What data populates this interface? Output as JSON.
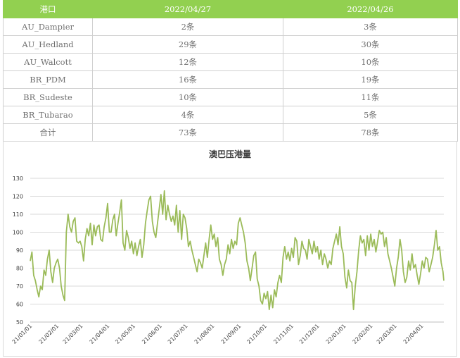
{
  "table": {
    "headers": [
      "港口",
      "2022/04/27",
      "2022/04/26"
    ],
    "rows": [
      [
        "AU_Dampier",
        "2条",
        "3条"
      ],
      [
        "AU_Hedland",
        "29条",
        "30条"
      ],
      [
        "AU_Walcott",
        "12条",
        "10条"
      ],
      [
        "BR_PDM",
        "16条",
        "19条"
      ],
      [
        "BR_Sudeste",
        "10条",
        "11条"
      ],
      [
        "BR_Tubarao",
        "4条",
        "5条"
      ],
      [
        "合计",
        "73条",
        "78条"
      ]
    ]
  },
  "colors": {
    "header_bg": "#92d050",
    "line": "#9bbb59",
    "grid": "#d9d9d9"
  },
  "chart_data": {
    "type": "line",
    "title": "澳巴压港量",
    "xlabel": "",
    "ylabel": "",
    "ylim": [
      50,
      130
    ],
    "yticks": [
      50,
      60,
      70,
      80,
      90,
      100,
      110,
      120,
      130
    ],
    "grid": true,
    "x_tick_labels": [
      "21/01/01",
      "21/02/01",
      "21/03/01",
      "21/04/01",
      "21/05/01",
      "21/06/01",
      "21/07/01",
      "21/08/01",
      "21/09/01",
      "21/10/01",
      "21/11/01",
      "21/12/01",
      "22/01/01",
      "22/02/01",
      "22/03/01",
      "22/04/01"
    ],
    "x_start": "2021-01-01",
    "x_end": "2022-04-27",
    "series": [
      {
        "name": "",
        "points": [
          [
            "2021-01-01",
            84
          ],
          [
            "2021-01-03",
            89
          ],
          [
            "2021-01-05",
            76
          ],
          [
            "2021-01-07",
            73
          ],
          [
            "2021-01-09",
            68
          ],
          [
            "2021-01-11",
            64
          ],
          [
            "2021-01-13",
            70
          ],
          [
            "2021-01-15",
            68
          ],
          [
            "2021-01-17",
            79
          ],
          [
            "2021-01-19",
            76
          ],
          [
            "2021-01-21",
            85
          ],
          [
            "2021-01-23",
            90
          ],
          [
            "2021-01-25",
            78
          ],
          [
            "2021-01-27",
            72
          ],
          [
            "2021-01-29",
            80
          ],
          [
            "2021-01-31",
            83
          ],
          [
            "2021-02-02",
            85
          ],
          [
            "2021-02-04",
            80
          ],
          [
            "2021-02-06",
            70
          ],
          [
            "2021-02-08",
            65
          ],
          [
            "2021-02-10",
            62
          ],
          [
            "2021-02-12",
            100
          ],
          [
            "2021-02-14",
            110
          ],
          [
            "2021-02-16",
            103
          ],
          [
            "2021-02-18",
            100
          ],
          [
            "2021-02-20",
            106
          ],
          [
            "2021-02-22",
            108
          ],
          [
            "2021-02-24",
            95
          ],
          [
            "2021-02-26",
            94
          ],
          [
            "2021-02-28",
            95
          ],
          [
            "2021-03-02",
            92
          ],
          [
            "2021-03-04",
            84
          ],
          [
            "2021-03-06",
            96
          ],
          [
            "2021-03-08",
            102
          ],
          [
            "2021-03-10",
            98
          ],
          [
            "2021-03-12",
            105
          ],
          [
            "2021-03-14",
            93
          ],
          [
            "2021-03-16",
            104
          ],
          [
            "2021-03-18",
            98
          ],
          [
            "2021-03-20",
            103
          ],
          [
            "2021-03-22",
            104
          ],
          [
            "2021-03-24",
            96
          ],
          [
            "2021-03-26",
            95
          ],
          [
            "2021-03-28",
            103
          ],
          [
            "2021-03-30",
            108
          ],
          [
            "2021-04-01",
            116
          ],
          [
            "2021-04-03",
            100
          ],
          [
            "2021-04-05",
            100
          ],
          [
            "2021-04-07",
            107
          ],
          [
            "2021-04-09",
            110
          ],
          [
            "2021-04-11",
            98
          ],
          [
            "2021-04-13",
            105
          ],
          [
            "2021-04-15",
            111
          ],
          [
            "2021-04-17",
            118
          ],
          [
            "2021-04-19",
            94
          ],
          [
            "2021-04-21",
            90
          ],
          [
            "2021-04-23",
            101
          ],
          [
            "2021-04-25",
            97
          ],
          [
            "2021-04-27",
            91
          ],
          [
            "2021-04-29",
            95
          ],
          [
            "2021-05-01",
            88
          ],
          [
            "2021-05-03",
            94
          ],
          [
            "2021-05-05",
            87
          ],
          [
            "2021-05-07",
            92
          ],
          [
            "2021-05-09",
            96
          ],
          [
            "2021-05-11",
            86
          ],
          [
            "2021-05-13",
            93
          ],
          [
            "2021-05-15",
            105
          ],
          [
            "2021-05-17",
            112
          ],
          [
            "2021-05-19",
            118
          ],
          [
            "2021-05-21",
            120
          ],
          [
            "2021-05-23",
            106
          ],
          [
            "2021-05-25",
            100
          ],
          [
            "2021-05-27",
            97
          ],
          [
            "2021-05-29",
            105
          ],
          [
            "2021-05-31",
            113
          ],
          [
            "2021-06-02",
            121
          ],
          [
            "2021-06-04",
            110
          ],
          [
            "2021-06-06",
            123
          ],
          [
            "2021-06-08",
            107
          ],
          [
            "2021-06-10",
            115
          ],
          [
            "2021-06-12",
            110
          ],
          [
            "2021-06-14",
            106
          ],
          [
            "2021-06-16",
            109
          ],
          [
            "2021-06-18",
            104
          ],
          [
            "2021-06-20",
            115
          ],
          [
            "2021-06-22",
            100
          ],
          [
            "2021-06-24",
            112
          ],
          [
            "2021-06-26",
            96
          ],
          [
            "2021-06-28",
            110
          ],
          [
            "2021-06-30",
            108
          ],
          [
            "2021-07-02",
            102
          ],
          [
            "2021-07-04",
            92
          ],
          [
            "2021-07-06",
            95
          ],
          [
            "2021-07-08",
            90
          ],
          [
            "2021-07-10",
            86
          ],
          [
            "2021-07-12",
            82
          ],
          [
            "2021-07-14",
            78
          ],
          [
            "2021-07-16",
            85
          ],
          [
            "2021-07-18",
            83
          ],
          [
            "2021-07-20",
            80
          ],
          [
            "2021-07-22",
            87
          ],
          [
            "2021-07-24",
            94
          ],
          [
            "2021-07-26",
            86
          ],
          [
            "2021-07-28",
            96
          ],
          [
            "2021-07-30",
            104
          ],
          [
            "2021-08-01",
            96
          ],
          [
            "2021-08-03",
            99
          ],
          [
            "2021-08-05",
            92
          ],
          [
            "2021-08-07",
            97
          ],
          [
            "2021-08-09",
            85
          ],
          [
            "2021-08-11",
            82
          ],
          [
            "2021-08-13",
            76
          ],
          [
            "2021-08-15",
            82
          ],
          [
            "2021-08-17",
            85
          ],
          [
            "2021-08-19",
            93
          ],
          [
            "2021-08-21",
            88
          ],
          [
            "2021-08-23",
            96
          ],
          [
            "2021-08-25",
            91
          ],
          [
            "2021-08-27",
            95
          ],
          [
            "2021-08-29",
            93
          ],
          [
            "2021-08-31",
            105
          ],
          [
            "2021-09-02",
            108
          ],
          [
            "2021-09-04",
            104
          ],
          [
            "2021-09-06",
            100
          ],
          [
            "2021-09-08",
            94
          ],
          [
            "2021-09-10",
            84
          ],
          [
            "2021-09-12",
            80
          ],
          [
            "2021-09-14",
            73
          ],
          [
            "2021-09-16",
            80
          ],
          [
            "2021-09-18",
            87
          ],
          [
            "2021-09-20",
            89
          ],
          [
            "2021-09-22",
            74
          ],
          [
            "2021-09-24",
            70
          ],
          [
            "2021-09-26",
            62
          ],
          [
            "2021-09-28",
            60
          ],
          [
            "2021-09-30",
            66
          ],
          [
            "2021-10-02",
            63
          ],
          [
            "2021-10-04",
            67
          ],
          [
            "2021-10-06",
            57
          ],
          [
            "2021-10-08",
            65
          ],
          [
            "2021-10-10",
            58
          ],
          [
            "2021-10-12",
            68
          ],
          [
            "2021-10-14",
            64
          ],
          [
            "2021-10-16",
            72
          ],
          [
            "2021-10-18",
            76
          ],
          [
            "2021-10-20",
            72
          ],
          [
            "2021-10-22",
            86
          ],
          [
            "2021-10-24",
            92
          ],
          [
            "2021-10-26",
            85
          ],
          [
            "2021-10-28",
            89
          ],
          [
            "2021-10-30",
            84
          ],
          [
            "2021-11-01",
            91
          ],
          [
            "2021-11-03",
            86
          ],
          [
            "2021-11-05",
            97
          ],
          [
            "2021-11-07",
            95
          ],
          [
            "2021-11-09",
            82
          ],
          [
            "2021-11-11",
            87
          ],
          [
            "2021-11-13",
            95
          ],
          [
            "2021-11-15",
            91
          ],
          [
            "2021-11-17",
            90
          ],
          [
            "2021-11-19",
            85
          ],
          [
            "2021-11-21",
            96
          ],
          [
            "2021-11-23",
            92
          ],
          [
            "2021-11-25",
            88
          ],
          [
            "2021-11-27",
            95
          ],
          [
            "2021-11-29",
            89
          ],
          [
            "2021-12-01",
            92
          ],
          [
            "2021-12-03",
            85
          ],
          [
            "2021-12-05",
            90
          ],
          [
            "2021-12-07",
            82
          ],
          [
            "2021-12-09",
            88
          ],
          [
            "2021-12-11",
            85
          ],
          [
            "2021-12-13",
            80
          ],
          [
            "2021-12-15",
            84
          ],
          [
            "2021-12-17",
            82
          ],
          [
            "2021-12-19",
            91
          ],
          [
            "2021-12-21",
            95
          ],
          [
            "2021-12-23",
            99
          ],
          [
            "2021-12-25",
            93
          ],
          [
            "2021-12-27",
            103
          ],
          [
            "2021-12-29",
            92
          ],
          [
            "2021-12-31",
            88
          ],
          [
            "2022-01-02",
            75
          ],
          [
            "2022-01-04",
            69
          ],
          [
            "2022-01-06",
            79
          ],
          [
            "2022-01-08",
            73
          ],
          [
            "2022-01-10",
            72
          ],
          [
            "2022-01-12",
            57
          ],
          [
            "2022-01-14",
            70
          ],
          [
            "2022-01-16",
            78
          ],
          [
            "2022-01-18",
            90
          ],
          [
            "2022-01-20",
            98
          ],
          [
            "2022-01-22",
            94
          ],
          [
            "2022-01-24",
            96
          ],
          [
            "2022-01-26",
            87
          ],
          [
            "2022-01-28",
            98
          ],
          [
            "2022-01-30",
            90
          ],
          [
            "2022-02-01",
            99
          ],
          [
            "2022-02-03",
            92
          ],
          [
            "2022-02-05",
            96
          ],
          [
            "2022-02-07",
            89
          ],
          [
            "2022-02-09",
            95
          ],
          [
            "2022-02-11",
            101
          ],
          [
            "2022-02-13",
            99
          ],
          [
            "2022-02-15",
            100
          ],
          [
            "2022-02-17",
            92
          ],
          [
            "2022-02-19",
            97
          ],
          [
            "2022-02-21",
            88
          ],
          [
            "2022-02-23",
            84
          ],
          [
            "2022-02-25",
            80
          ],
          [
            "2022-02-27",
            75
          ],
          [
            "2022-03-01",
            70
          ],
          [
            "2022-03-03",
            80
          ],
          [
            "2022-03-05",
            86
          ],
          [
            "2022-03-07",
            96
          ],
          [
            "2022-03-09",
            90
          ],
          [
            "2022-03-11",
            78
          ],
          [
            "2022-03-13",
            72
          ],
          [
            "2022-03-15",
            75
          ],
          [
            "2022-03-17",
            84
          ],
          [
            "2022-03-19",
            79
          ],
          [
            "2022-03-21",
            88
          ],
          [
            "2022-03-23",
            80
          ],
          [
            "2022-03-25",
            82
          ],
          [
            "2022-03-27",
            76
          ],
          [
            "2022-03-29",
            71
          ],
          [
            "2022-03-31",
            77
          ],
          [
            "2022-04-02",
            84
          ],
          [
            "2022-04-04",
            80
          ],
          [
            "2022-04-06",
            86
          ],
          [
            "2022-04-08",
            85
          ],
          [
            "2022-04-10",
            78
          ],
          [
            "2022-04-12",
            82
          ],
          [
            "2022-04-14",
            86
          ],
          [
            "2022-04-16",
            93
          ],
          [
            "2022-04-18",
            101
          ],
          [
            "2022-04-20",
            90
          ],
          [
            "2022-04-22",
            92
          ],
          [
            "2022-04-24",
            83
          ],
          [
            "2022-04-26",
            78
          ],
          [
            "2022-04-27",
            73
          ]
        ]
      }
    ]
  }
}
